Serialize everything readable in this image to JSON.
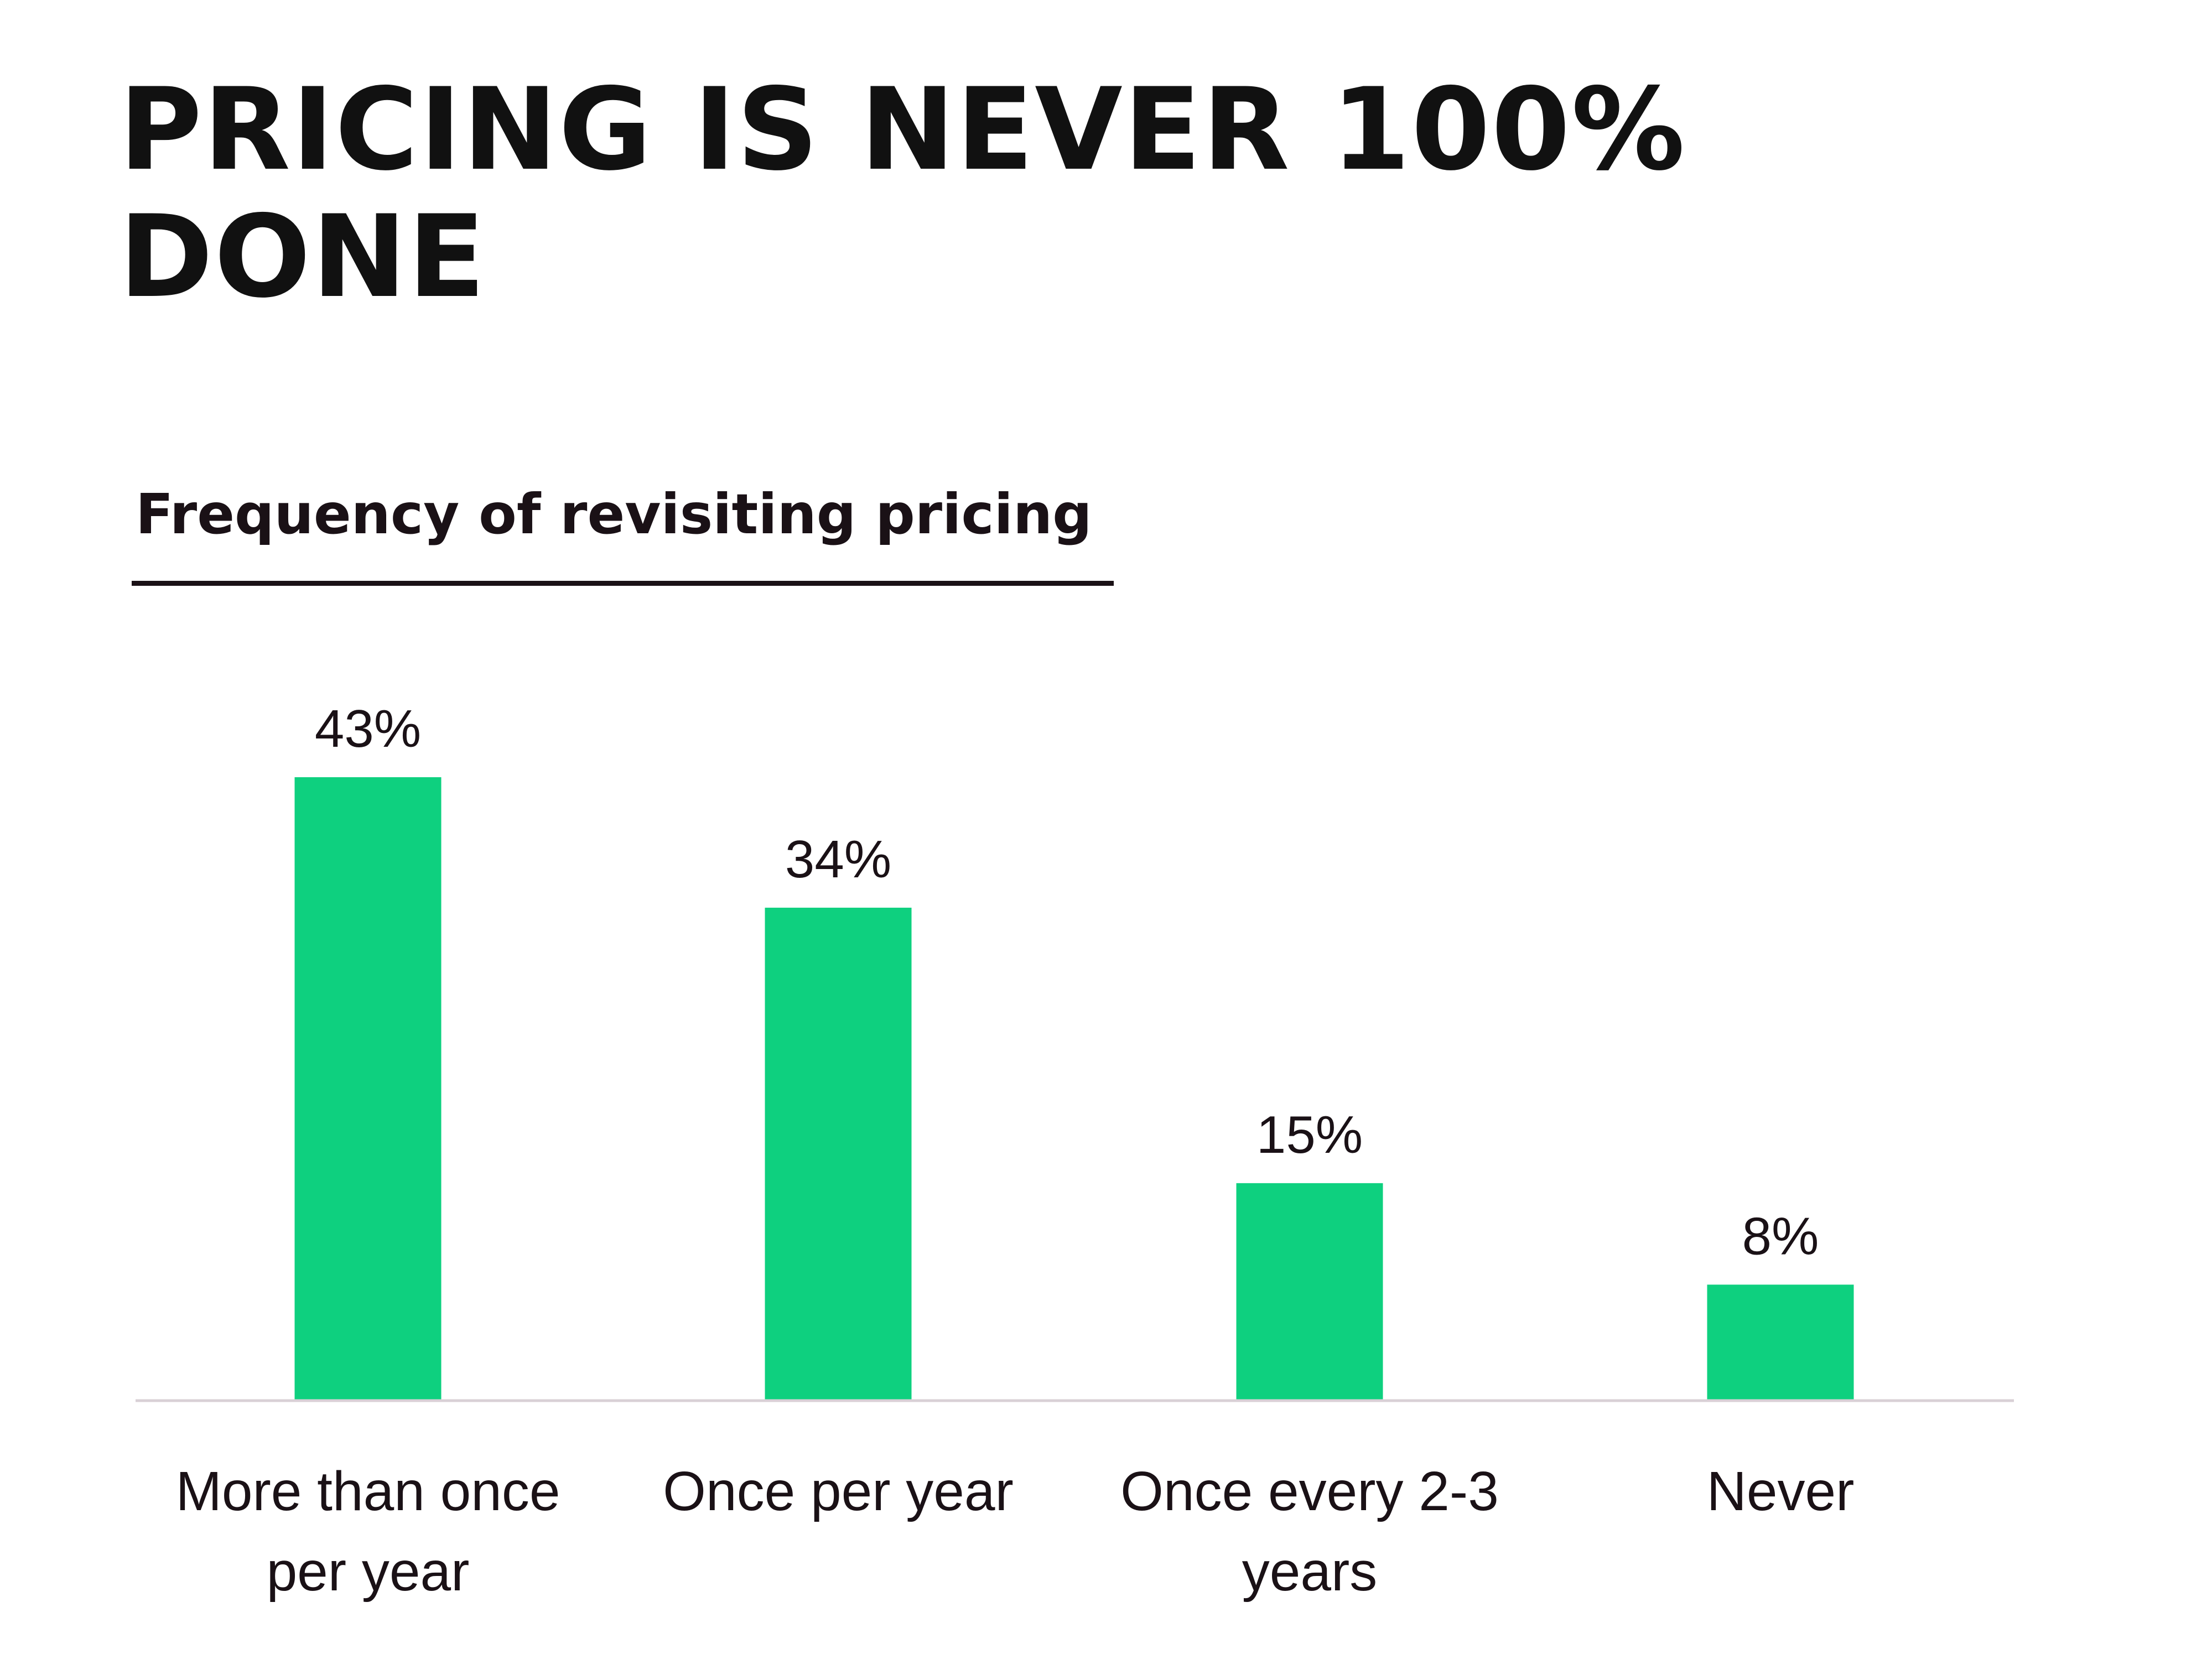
{
  "headline": "PRICING IS NEVER 100% DONE",
  "chart_data": {
    "type": "bar",
    "title": "Frequency of revisiting pricing",
    "categories": [
      [
        "More than once",
        "per year"
      ],
      [
        "Once per year"
      ],
      [
        "Once every 2-3",
        "years"
      ],
      [
        "Never"
      ]
    ],
    "values": [
      43,
      34,
      15,
      8
    ],
    "value_labels": [
      "43%",
      "34%",
      "15%",
      "8%"
    ],
    "unit": "%",
    "ylim": [
      0,
      43
    ],
    "grid": false,
    "legend": "none",
    "bar_color": "#0ed07f",
    "text_color": "#1a1116",
    "baseline_color": "#d9d0d6"
  }
}
